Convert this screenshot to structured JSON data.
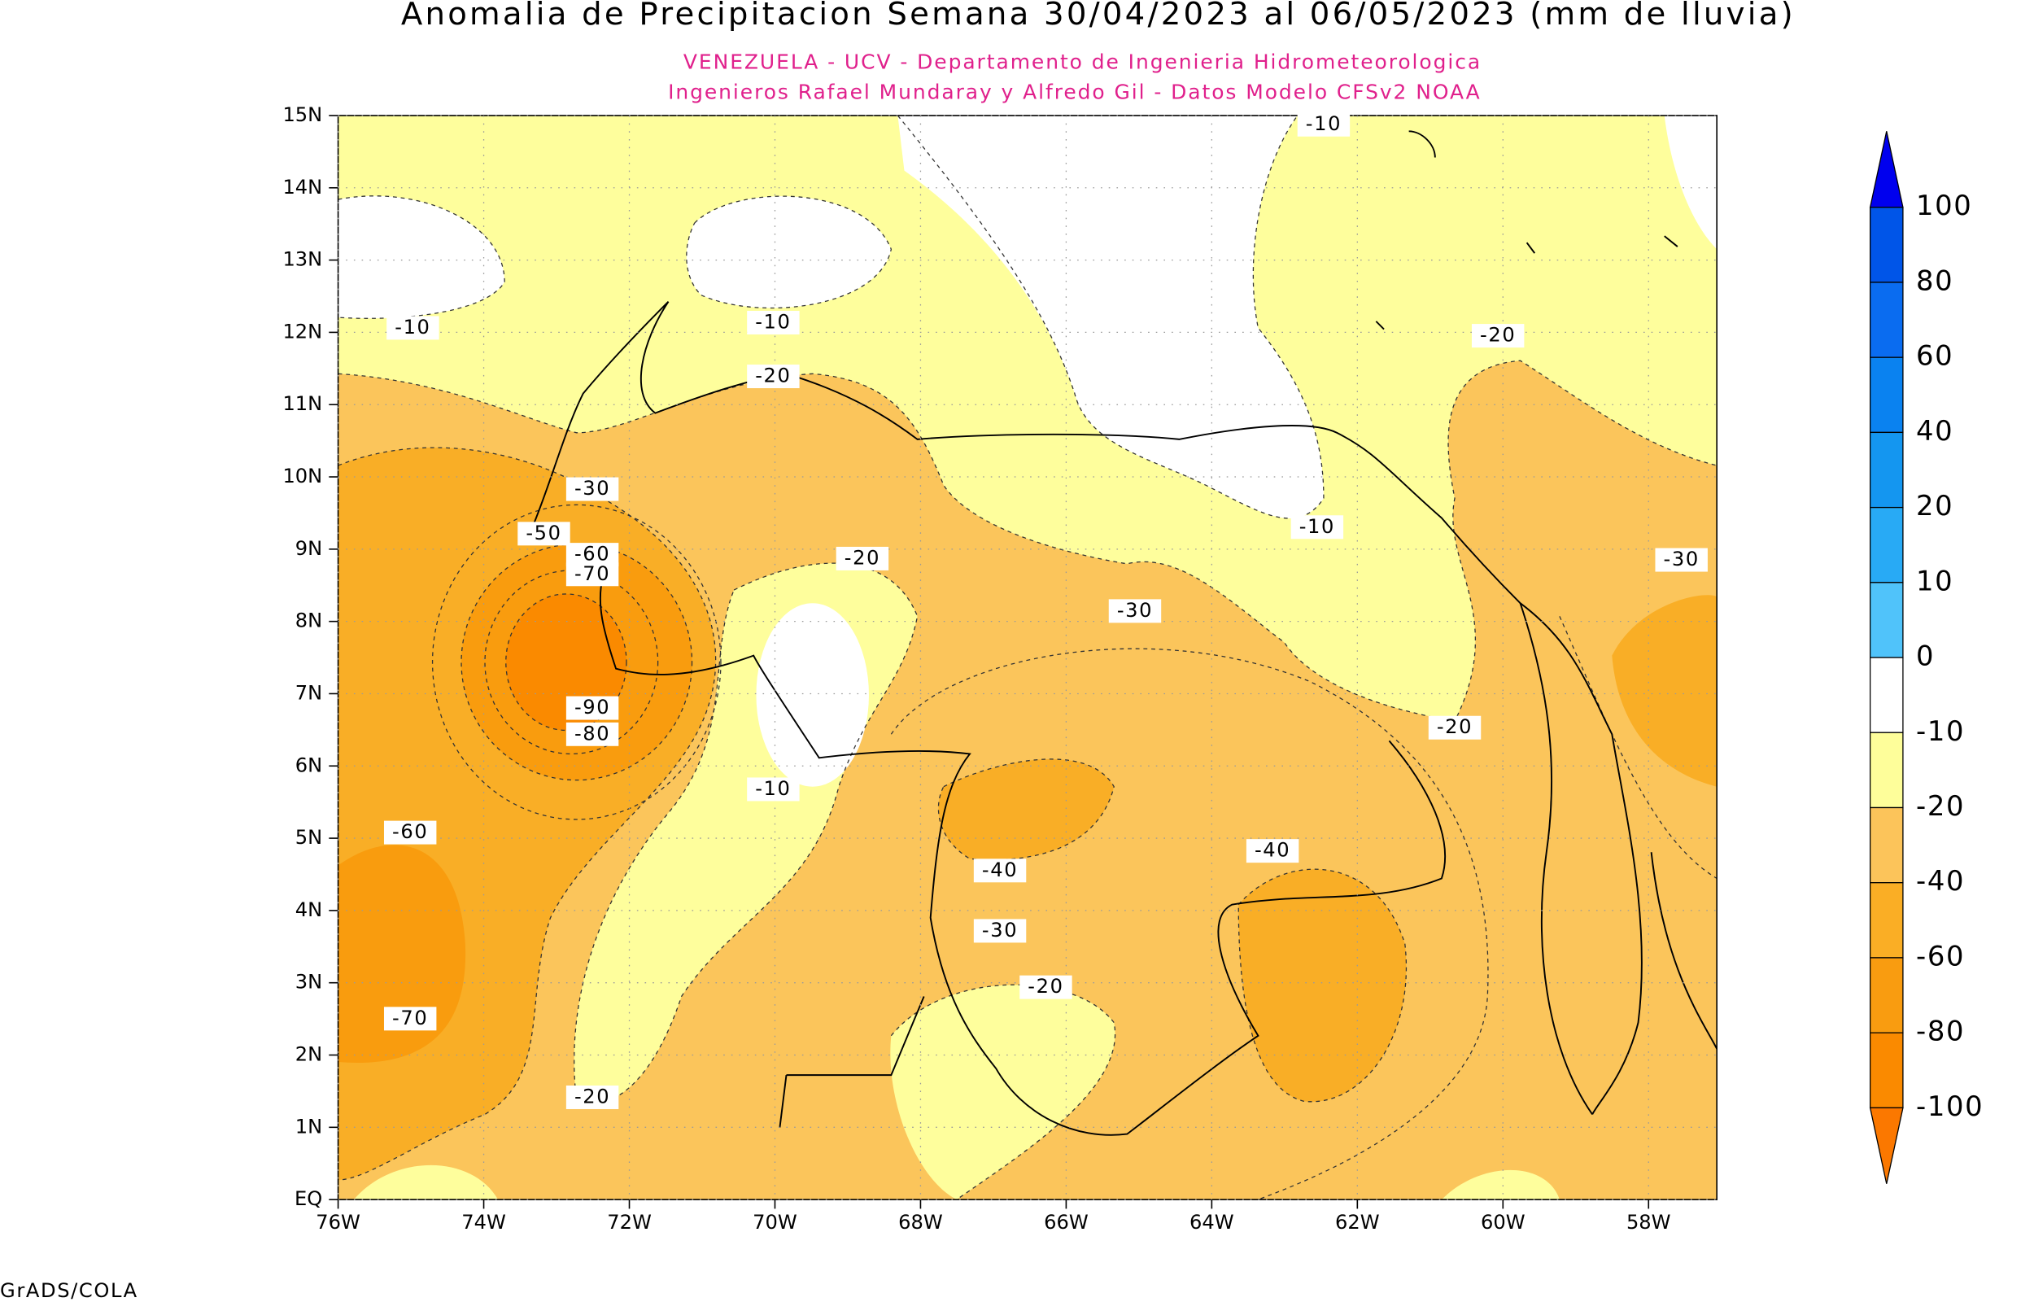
{
  "header": {
    "title": "Anomalia de Precipitacion Semana 30/04/2023 al 06/05/2023 (mm de lluvia)",
    "subtitle_1": "VENEZUELA - UCV - Departamento de Ingenieria Hidrometeorologica",
    "subtitle_2": "Ingenieros Rafael Mundaray y Alfredo Gil - Datos Modelo CFSv2 NOAA"
  },
  "map": {
    "lat_labels": [
      "15N",
      "14N",
      "13N",
      "12N",
      "11N",
      "10N",
      "9N",
      "8N",
      "7N",
      "6N",
      "5N",
      "4N",
      "3N",
      "2N",
      "1N",
      "EQ"
    ],
    "lon_labels": [
      "76W",
      "74W",
      "72W",
      "70W",
      "68W",
      "66W",
      "64W",
      "62W",
      "60W",
      "58W"
    ],
    "contour_labels": [
      "-10",
      "-10",
      "-10",
      "-20",
      "-30",
      "-50",
      "-60",
      "-70",
      "-20",
      "-10",
      "-30",
      "-20",
      "-30",
      "-90",
      "-80",
      "-20",
      "-10",
      "-60",
      "-40",
      "-40",
      "-30",
      "-70",
      "-20",
      "-20"
    ]
  },
  "colorbar": {
    "labels": [
      "100",
      "80",
      "60",
      "40",
      "20",
      "10",
      "0",
      "-10",
      "-20",
      "-40",
      "-60",
      "-80",
      "-100"
    ]
  },
  "footer": "GrADS/COLA"
}
